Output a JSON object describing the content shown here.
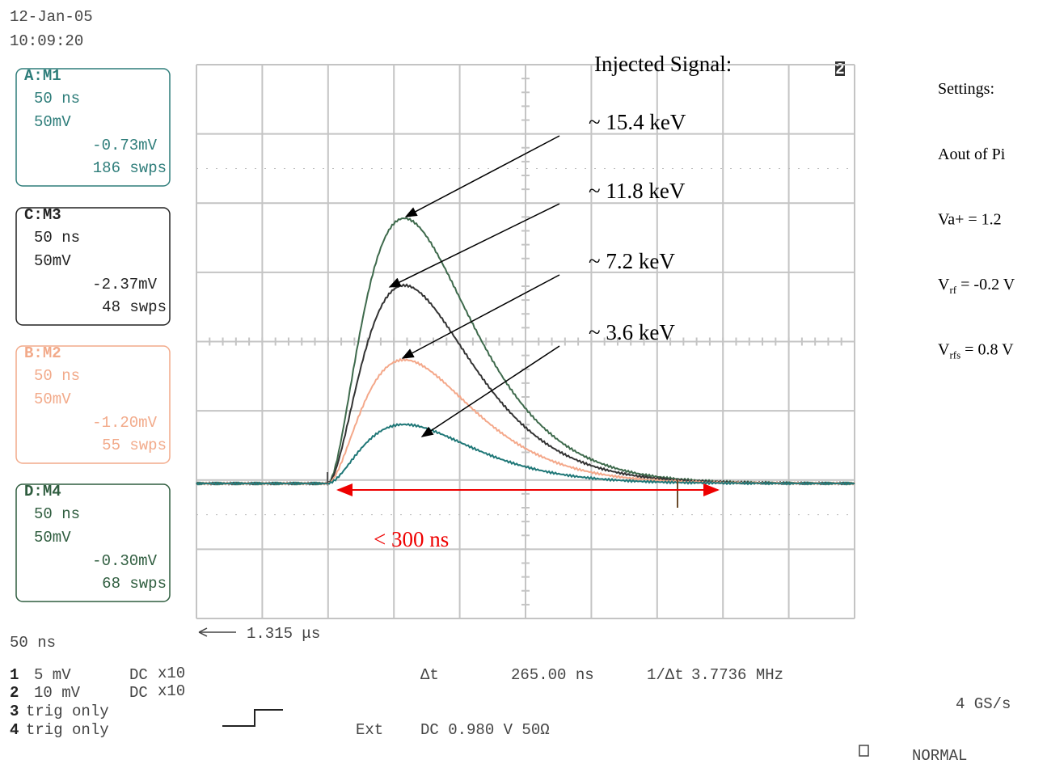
{
  "header": {
    "date": "12-Jan-05",
    "time": "10:09:20",
    "marker": "2"
  },
  "traces": [
    {
      "channel": "A",
      "memory": "M1",
      "timebase": "50 ns",
      "scale": "50mV",
      "offset": "-0.73mV",
      "sweeps": "186 swps"
    },
    {
      "channel": "C",
      "memory": "M3",
      "timebase": "50 ns",
      "scale": "50mV",
      "offset": "-2.37mV",
      "sweeps": "48 swps"
    },
    {
      "channel": "B",
      "memory": "M2",
      "timebase": "50 ns",
      "scale": "50mV",
      "offset": "-1.20mV",
      "sweeps": "55 swps"
    },
    {
      "channel": "D",
      "memory": "M4",
      "timebase": "50 ns",
      "scale": "50mV",
      "offset": "-0.30mV",
      "sweeps": "68 swps"
    }
  ],
  "footer": {
    "timebase": "50 ns",
    "delay": "1.315 μs",
    "channels": [
      {
        "number": "1",
        "scale": "5 mV",
        "coupling": "DC",
        "probe": "x10"
      },
      {
        "number": "2",
        "scale": "10 mV",
        "coupling": "DC",
        "probe": "x10"
      },
      {
        "number": "3",
        "scale": "trig only"
      },
      {
        "number": "4",
        "scale": "trig only"
      }
    ],
    "delta_label": "Δt",
    "delta_value": "265.00 ns",
    "freq_label": "1/Δt",
    "freq_value": "3.7736 MHz",
    "trigger_source": "Ext",
    "trigger_setting": "DC 0.980 V 50Ω",
    "sample_rate": "4 GS/s",
    "mode": "NORMAL"
  },
  "annotations": {
    "heading": "Injected Signal:",
    "labels": [
      "~ 15.4 keV",
      "~ 11.8 keV",
      "~ 7.2 keV",
      "~ 3.6 keV"
    ],
    "width": "< 300 ns"
  },
  "settings": {
    "heading": "Settings:",
    "lines": [
      {
        "base": "Aout of Pi"
      },
      {
        "base": "Va+ = 1.2"
      },
      {
        "base": "V",
        "sub": "rf",
        "rest": " = -0.2 V"
      },
      {
        "base": "V",
        "sub": "rfs",
        "rest": " = 0.8 V"
      }
    ]
  }
}
